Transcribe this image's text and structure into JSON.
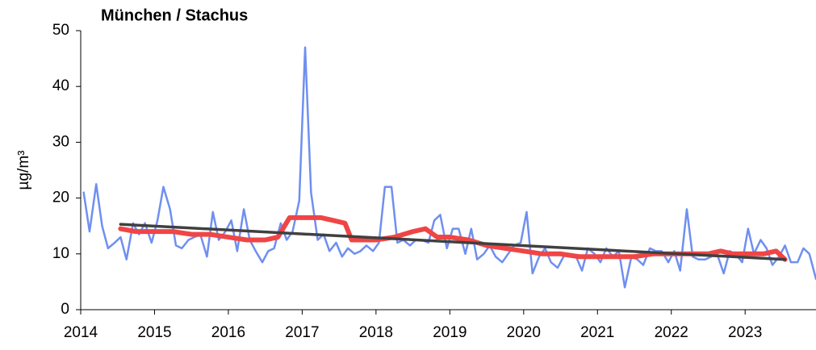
{
  "chart_data": {
    "type": "line",
    "title": "München / Stachus",
    "y_label": "µg/m³",
    "xlim": [
      2014,
      2023.96
    ],
    "xticks": [
      2014,
      2015,
      2016,
      2017,
      2018,
      2019,
      2020,
      2021,
      2022,
      2023
    ],
    "ylim": [
      0,
      50
    ],
    "yticks": [
      0,
      10,
      20,
      30,
      40,
      50
    ],
    "grid": false,
    "series": [
      {
        "color": "#6f8ff0",
        "width": 2.5,
        "x": [
          2014.04,
          2014.12,
          2014.21,
          2014.29,
          2014.37,
          2014.46,
          2014.54,
          2014.62,
          2014.71,
          2014.79,
          2014.87,
          2014.96,
          2015.04,
          2015.12,
          2015.21,
          2015.29,
          2015.37,
          2015.46,
          2015.54,
          2015.62,
          2015.71,
          2015.79,
          2015.87,
          2015.96,
          2016.04,
          2016.12,
          2016.21,
          2016.29,
          2016.37,
          2016.46,
          2016.54,
          2016.62,
          2016.71,
          2016.79,
          2016.87,
          2016.96,
          2017.04,
          2017.12,
          2017.21,
          2017.29,
          2017.37,
          2017.46,
          2017.54,
          2017.62,
          2017.71,
          2017.79,
          2017.87,
          2017.96,
          2018.04,
          2018.12,
          2018.21,
          2018.29,
          2018.37,
          2018.46,
          2018.54,
          2018.62,
          2018.71,
          2018.79,
          2018.87,
          2018.96,
          2019.04,
          2019.12,
          2019.21,
          2019.29,
          2019.37,
          2019.46,
          2019.54,
          2019.62,
          2019.71,
          2019.79,
          2019.87,
          2019.96,
          2020.04,
          2020.12,
          2020.21,
          2020.29,
          2020.37,
          2020.46,
          2020.54,
          2020.62,
          2020.71,
          2020.79,
          2020.87,
          2020.96,
          2021.04,
          2021.12,
          2021.21,
          2021.29,
          2021.37,
          2021.46,
          2021.54,
          2021.62,
          2021.71,
          2021.79,
          2021.87,
          2021.96,
          2022.04,
          2022.12,
          2022.21,
          2022.29,
          2022.37,
          2022.46,
          2022.54,
          2022.62,
          2022.71,
          2022.79,
          2022.87,
          2022.96,
          2023.04,
          2023.12,
          2023.21,
          2023.29,
          2023.37,
          2023.46,
          2023.54,
          2023.62,
          2023.71,
          2023.79,
          2023.87,
          2023.96
        ],
        "values": [
          21,
          14,
          22.5,
          15,
          11,
          12,
          13,
          9,
          15.5,
          13.5,
          15.5,
          12,
          16,
          22,
          18,
          11.5,
          11,
          12.5,
          13,
          13.5,
          9.5,
          17.5,
          12.5,
          14,
          16,
          10.5,
          18,
          12.5,
          10.5,
          8.5,
          10.5,
          11,
          15.5,
          12.5,
          14,
          19.5,
          47,
          21,
          12.5,
          13.5,
          10.5,
          12,
          9.5,
          11,
          10,
          10.5,
          11.5,
          10.5,
          12,
          22,
          22,
          12,
          12.5,
          11.5,
          12.5,
          12.5,
          12,
          16,
          17,
          11,
          14.5,
          14.5,
          10,
          14.5,
          9,
          10,
          11.5,
          9.5,
          8.5,
          10,
          11.5,
          12,
          17.5,
          6.5,
          9.5,
          11,
          8.5,
          7.5,
          9.5,
          10,
          9.5,
          7,
          11,
          10,
          8.5,
          11,
          9.5,
          10.5,
          4,
          9.5,
          9,
          8,
          11,
          10.5,
          10.5,
          8.5,
          10.5,
          7,
          18,
          9.5,
          9,
          9,
          9.5,
          10,
          6.5,
          10.5,
          10,
          8.5,
          14.5,
          10,
          12.5,
          11,
          8,
          9.5,
          11.5,
          8.5,
          8.5,
          11,
          10,
          5.5
        ]
      },
      {
        "color": "#f04545",
        "width": 6,
        "x": [
          2014.54,
          2014.75,
          2015.0,
          2015.25,
          2015.5,
          2015.75,
          2016.0,
          2016.25,
          2016.5,
          2016.67,
          2016.83,
          2017.0,
          2017.25,
          2017.42,
          2017.58,
          2017.67,
          2017.83,
          2018.0,
          2018.25,
          2018.5,
          2018.67,
          2018.83,
          2019.0,
          2019.25,
          2019.5,
          2019.75,
          2020.0,
          2020.25,
          2020.5,
          2020.75,
          2021.0,
          2021.25,
          2021.5,
          2021.75,
          2022.0,
          2022.25,
          2022.5,
          2022.67,
          2022.83,
          2023.0,
          2023.25,
          2023.42,
          2023.54
        ],
        "values": [
          14.5,
          14,
          14,
          14,
          13.5,
          13.5,
          13,
          12.5,
          12.5,
          13,
          16.5,
          16.5,
          16.5,
          16,
          15.5,
          12.5,
          12.5,
          12.5,
          13,
          14,
          14.5,
          13,
          13,
          12.5,
          11.5,
          11,
          10.5,
          10,
          10,
          9.5,
          9.5,
          9.5,
          9.5,
          10,
          10,
          10,
          10,
          10.5,
          10,
          10,
          10,
          10.5,
          9
        ]
      },
      {
        "color": "#404040",
        "width": 3.5,
        "x": [
          2014.54,
          2023.54
        ],
        "values": [
          15.3,
          9
        ]
      }
    ]
  }
}
